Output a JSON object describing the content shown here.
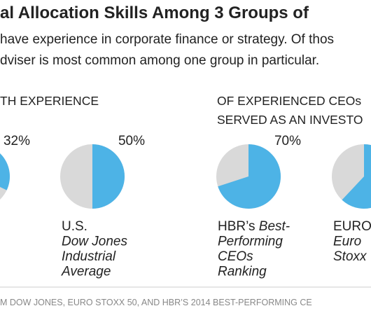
{
  "chart_data": {
    "type": "pie",
    "title": "al Allocation Skills Among 3 Groups of",
    "subtitle": [
      "have experience in corporate finance or strategy. Of thos",
      "dviser is most common among one group in particular."
    ],
    "group_headers": [
      [
        "TH EXPERIENCE"
      ],
      [
        "OF EXPERIENCED CEOs",
        "SERVED AS AN INVESTO"
      ]
    ],
    "colors": {
      "share": "#4db3e6",
      "rest": "#d9d9d9"
    },
    "pies": [
      {
        "value": 32,
        "value_label": "32%",
        "label": []
      },
      {
        "value": 50,
        "value_label": "50%",
        "label": [
          [
            {
              "text": "U.S."
            }
          ],
          [
            {
              "text": "Dow Jones",
              "italic": true
            }
          ],
          [
            {
              "text": "Industrial",
              "italic": true
            }
          ],
          [
            {
              "text": "Average",
              "italic": true
            }
          ]
        ]
      },
      {
        "value": 70,
        "value_label": "70%",
        "label": [
          [
            {
              "text": "HBR’s "
            },
            {
              "text": "Best-",
              "italic": true
            }
          ],
          [
            {
              "text": "Performing",
              "italic": true
            }
          ],
          [
            {
              "text": "CEOs",
              "italic": true
            }
          ],
          [
            {
              "text": "Ranking",
              "italic": true
            }
          ]
        ]
      },
      {
        "value": 62,
        "label": [
          [
            {
              "text": "EURO"
            }
          ],
          [
            {
              "text": "Euro",
              "italic": true
            }
          ],
          [
            {
              "text": "Stoxx",
              "italic": true
            }
          ]
        ]
      }
    ],
    "source": "M DOW JONES, EURO STOXX 50, AND HBR’S 2014 BEST-PERFORMING CE"
  }
}
